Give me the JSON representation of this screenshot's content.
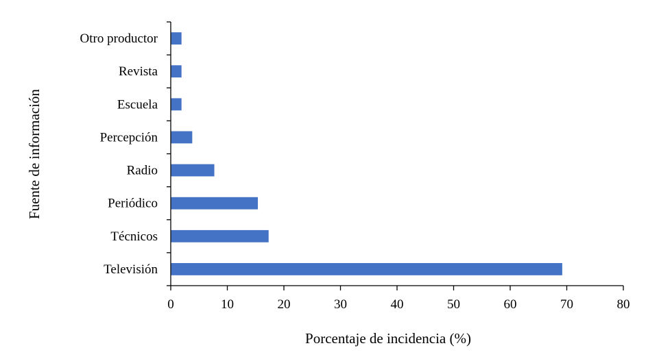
{
  "chart_data": {
    "type": "bar",
    "orientation": "horizontal",
    "categories": [
      "Televisión",
      "Técnicos",
      "Periódico",
      "Radio",
      "Percepción",
      "Escuela",
      "Revista",
      "Otro productor"
    ],
    "values": [
      69.2,
      17.3,
      15.4,
      7.7,
      3.8,
      1.9,
      1.9,
      1.9
    ],
    "xlabel": "Porcentaje de incidencia (%)",
    "ylabel": "Fuente de información",
    "xlim": [
      0,
      80
    ],
    "xticks": [
      0,
      10,
      20,
      30,
      40,
      50,
      60,
      70,
      80
    ],
    "grid": false,
    "legend": "none",
    "bar_color": "#4472C4"
  }
}
